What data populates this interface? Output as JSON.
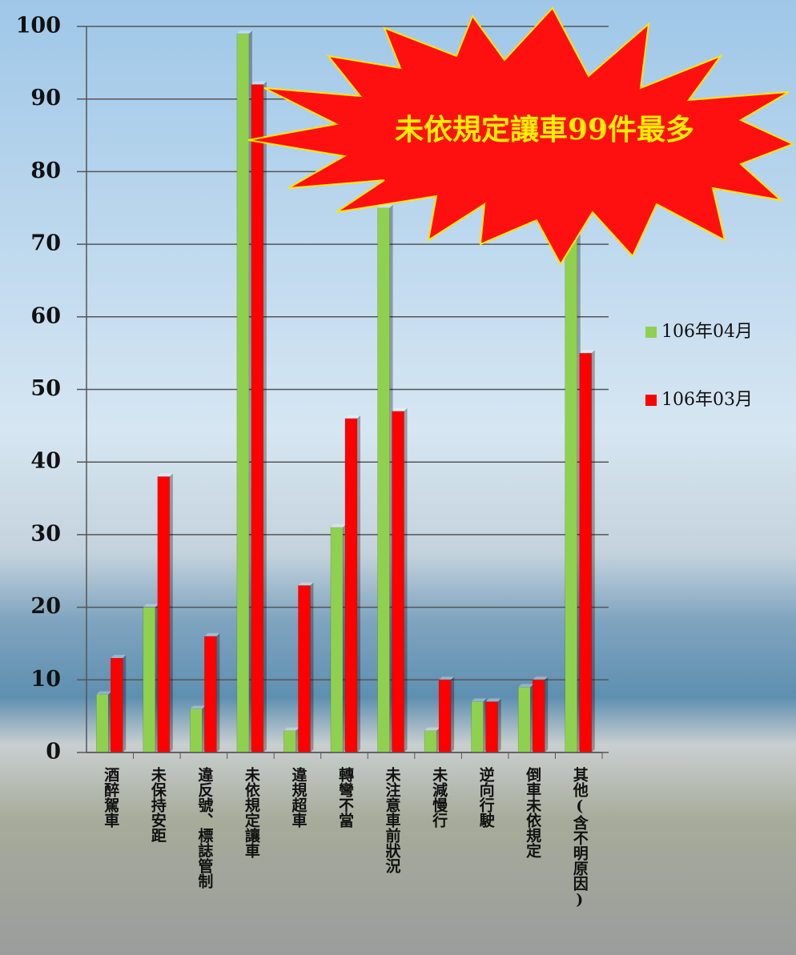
{
  "chart_data": {
    "type": "bar",
    "annotation": "未依規定讓車99件最多",
    "categories": [
      "酒醉駕車",
      "未保持安距",
      "違反號、標誌管制",
      "未依規定讓車",
      "違規超車",
      "轉彎不當",
      "未注意車前狀況",
      "未減慢行",
      "逆向行駛",
      "倒車未依規定",
      "其他(含不明原因)"
    ],
    "series": [
      {
        "name": "106年04月",
        "color": "#8fd14f",
        "values": [
          8,
          20,
          6,
          99,
          3,
          31,
          75,
          3,
          7,
          9,
          71
        ]
      },
      {
        "name": "106年03月",
        "color": "#ff0000",
        "values": [
          13,
          38,
          16,
          92,
          23,
          46,
          47,
          10,
          7,
          10,
          55
        ]
      }
    ],
    "ylim": [
      0,
      100
    ],
    "yticks": [
      0,
      10,
      20,
      30,
      40,
      50,
      60,
      70,
      80,
      90,
      100
    ],
    "grid": true,
    "legend": "right"
  }
}
